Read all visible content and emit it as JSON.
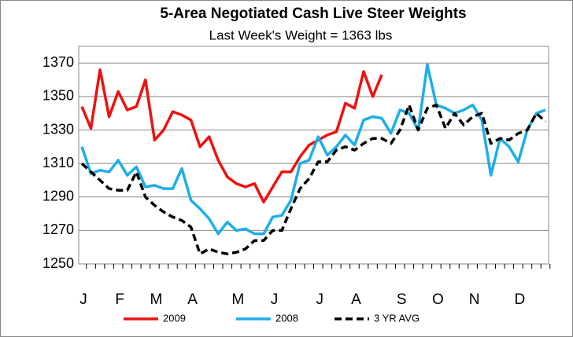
{
  "chart_data": {
    "type": "line",
    "title": "5-Area Negotiated Cash Live Steer Weights",
    "subtitle": "Last Week's Weight = 1363 lbs",
    "categories": [
      "J",
      null,
      null,
      null,
      "F",
      null,
      null,
      null,
      "M",
      null,
      null,
      null,
      "A",
      null,
      null,
      null,
      null,
      "M",
      null,
      null,
      null,
      "J",
      null,
      null,
      null,
      null,
      "J",
      null,
      null,
      null,
      "A",
      null,
      null,
      null,
      null,
      "S",
      null,
      null,
      null,
      "O",
      null,
      null,
      null,
      "N",
      null,
      null,
      null,
      null,
      "D",
      null,
      null,
      null
    ],
    "series": [
      {
        "name": "2009",
        "color": "#ee1111",
        "dashed": false,
        "values": [
          1344,
          1331,
          1366,
          1338,
          1353,
          1342,
          1344,
          1360,
          1324,
          1330,
          1341,
          1339,
          1336,
          1320,
          1326,
          1312,
          1302,
          1298,
          1296,
          1298,
          1287,
          1296,
          1305,
          1305,
          1314,
          1321,
          1324,
          1327,
          1329,
          1346,
          1343,
          1365,
          1350,
          1363,
          null,
          null,
          null,
          null,
          null,
          null,
          null,
          null,
          null,
          null,
          null,
          null,
          null,
          null,
          null,
          null,
          null,
          null
        ]
      },
      {
        "name": "2008",
        "color": "#1eaee8",
        "dashed": false,
        "values": [
          1320,
          1304,
          1306,
          1305,
          1312,
          1303,
          1308,
          1296,
          1297,
          1295,
          1295,
          1307,
          1288,
          1283,
          1277,
          1268,
          1275,
          1270,
          1271,
          1268,
          1268,
          1278,
          1279,
          1288,
          1310,
          1312,
          1326,
          1315,
          1320,
          1327,
          1321,
          1336,
          1338,
          1337,
          1328,
          1342,
          1340,
          1330,
          1369,
          1345,
          1343,
          1340,
          1342,
          1345,
          1336,
          1303,
          1325,
          1320,
          1311,
          1330,
          1340,
          1342
        ]
      },
      {
        "name": "3 YR AVG",
        "color": "#000000",
        "dashed": true,
        "values": [
          1310,
          1305,
          1300,
          1295,
          1294,
          1294,
          1305,
          1290,
          1285,
          1281,
          1278,
          1276,
          1272,
          1256,
          1259,
          1257,
          1256,
          1257,
          1259,
          1264,
          1264,
          1270,
          1270,
          1283,
          1295,
          1301,
          1311,
          1311,
          1318,
          1320,
          1318,
          1322,
          1325,
          1325,
          1322,
          1330,
          1345,
          1330,
          1343,
          1345,
          1331,
          1340,
          1333,
          1338,
          1340,
          1322,
          1325,
          1324,
          1328,
          1330,
          1340,
          1335
        ]
      }
    ],
    "ylim": [
      1250,
      1380
    ],
    "yticks": [
      1250,
      1270,
      1290,
      1310,
      1330,
      1350,
      1370
    ],
    "grid": true
  }
}
